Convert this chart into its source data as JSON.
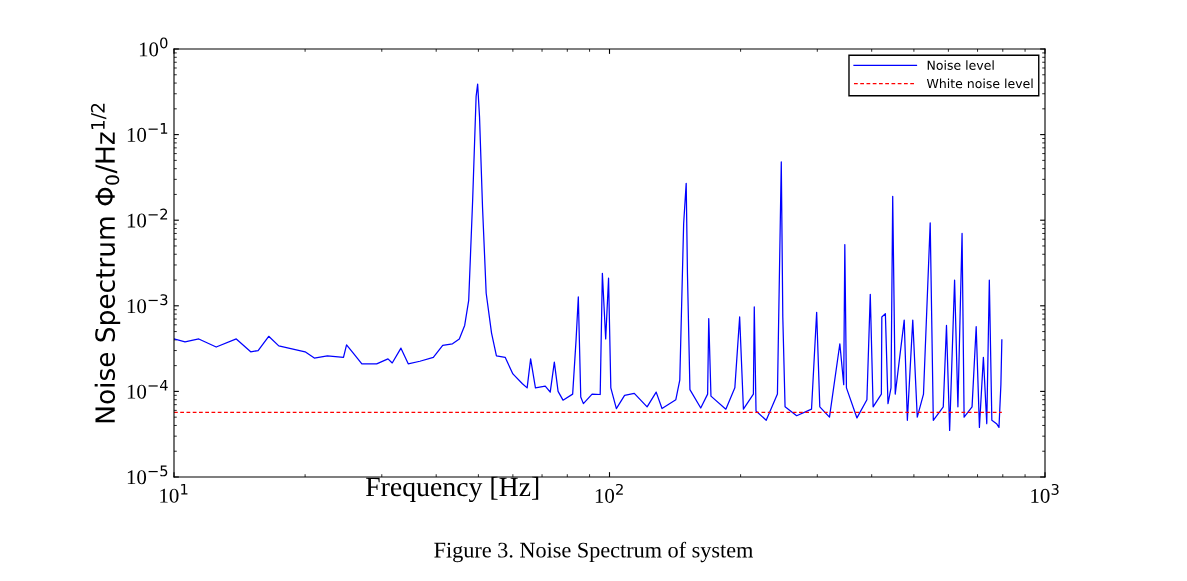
{
  "chart_data": {
    "type": "line",
    "xlabel": "Frequency [Hz]",
    "ylabel": "Noise Spectrum Φ$_{0}$/Hz$^{1/2}$",
    "annotations": [
      "Figure 3. Noise Spectrum of system"
    ],
    "log": "xy",
    "grid": false,
    "legend": "top right",
    "marker": "none",
    "xlim": [
      10,
      1000
    ],
    "xticks": [
      {
        "value": 10,
        "label": "10$^{1}$"
      },
      {
        "value": 100,
        "label": "10$^{2}$"
      },
      {
        "value": 1000,
        "label": "10$^{3}$"
      }
    ],
    "ylim": [
      1e-05,
      1
    ],
    "yticks": [
      {
        "value": 1e-05,
        "label": "10$^{−5}$"
      },
      {
        "value": 0.0001,
        "label": "10$^{−4}$"
      },
      {
        "value": 0.001,
        "label": "10$^{−3}$"
      },
      {
        "value": 0.01,
        "label": "10$^{−2}$"
      },
      {
        "value": 0.1,
        "label": "10$^{−1}$"
      },
      {
        "value": 1,
        "label": "10$^{0}$"
      }
    ],
    "series": [
      {
        "name": "Noise level",
        "color": "#0000ff",
        "line_style": "solid",
        "x": [
          10,
          10.6,
          11.4,
          12.5,
          13.9,
          15.0,
          15.6,
          16.5,
          17.4,
          20.0,
          21.0,
          22.5,
          24.5,
          24.9,
          25.8,
          27.0,
          29.2,
          31.0,
          31.7,
          33.2,
          34.5,
          36.7,
          39.4,
          41.4,
          43.6,
          45.2,
          46.5,
          47.5,
          48.5,
          49.4,
          49.8,
          50.3,
          51.1,
          52.1,
          53.6,
          55.0,
          57.6,
          60.0,
          63.1,
          64.7,
          65.9,
          67.6,
          71.2,
          73.1,
          74.7,
          76.2,
          78.2,
          82.3,
          83.8,
          84.8,
          85.9,
          87.1,
          91.2,
          95.2,
          96.3,
          98.0,
          99.5,
          100.7,
          103.7,
          108.3,
          114,
          122,
          128,
          132,
          142,
          145,
          148,
          150,
          151,
          153,
          162,
          168,
          169,
          171,
          185,
          194,
          199,
          203,
          214,
          215,
          217,
          229,
          243,
          248,
          250,
          253,
          269,
          291,
          299,
          304,
          320,
          338,
          345,
          347,
          350,
          370,
          390,
          397,
          403,
          421,
          422,
          430,
          436,
          443,
          447,
          453,
          475,
          483,
          497,
          509,
          526,
          545,
          554,
          584,
          594,
          604,
          620,
          631,
          645,
          652,
          680,
          695,
          707,
          722,
          735,
          745,
          755,
          774,
          784,
          792,
          796
        ],
        "values": [
          0.00041,
          0.00038,
          0.00041,
          0.00033,
          0.00041,
          0.00029,
          0.0003,
          0.00044,
          0.00034,
          0.00029,
          0.000245,
          0.00026,
          0.00025,
          0.00035,
          0.00028,
          0.00021,
          0.00021,
          0.00024,
          0.000215,
          0.00032,
          0.00021,
          0.000225,
          0.00025,
          0.000345,
          0.00036,
          0.00041,
          0.00059,
          0.00116,
          0.017,
          0.28,
          0.39,
          0.16,
          0.0143,
          0.0014,
          0.00048,
          0.00026,
          0.00025,
          0.00016,
          0.000123,
          0.00011,
          0.00024,
          0.00011,
          0.000115,
          9.8e-05,
          0.00022,
          0.0001,
          7.9e-05,
          9.3e-05,
          0.0004,
          0.00127,
          8.6e-05,
          7.2e-05,
          9.3e-05,
          9.2e-05,
          0.0024,
          0.00041,
          0.0021,
          0.00011,
          6.3e-05,
          9e-05,
          9.5e-05,
          6.6e-05,
          9.8e-05,
          6.3e-05,
          8e-05,
          0.000135,
          0.0091,
          0.027,
          0.0024,
          0.000105,
          6.4e-05,
          9.3e-05,
          0.00071,
          8.8e-05,
          6.2e-05,
          0.00011,
          0.00074,
          6.2e-05,
          9.3e-05,
          0.00097,
          5.9e-05,
          4.6e-05,
          9.3e-05,
          0.048,
          0.00074,
          6.6e-05,
          5.2e-05,
          6.2e-05,
          0.00084,
          6.6e-05,
          5e-05,
          0.00036,
          0.00012,
          0.0052,
          0.00011,
          4.9e-05,
          8e-05,
          0.00136,
          6.6e-05,
          9.3e-05,
          0.00074,
          0.00081,
          7.2e-05,
          0.00011,
          0.019,
          9.3e-05,
          0.00068,
          4.6e-05,
          0.00068,
          5e-05,
          9.3e-05,
          0.0093,
          4.6e-05,
          6.6e-05,
          0.00059,
          3.5e-05,
          0.002,
          6.6e-05,
          0.007,
          5e-05,
          6.6e-05,
          0.00057,
          3.8e-05,
          0.00025,
          4.2e-05,
          0.002,
          4.6e-05,
          4.2e-05,
          3.8e-05,
          0.00012,
          0.0004
        ]
      },
      {
        "name": "White noise level",
        "color": "#ff0000",
        "line_style": "dashed",
        "x": [
          10,
          796
        ],
        "values": [
          5.7e-05,
          5.7e-05
        ]
      }
    ]
  }
}
